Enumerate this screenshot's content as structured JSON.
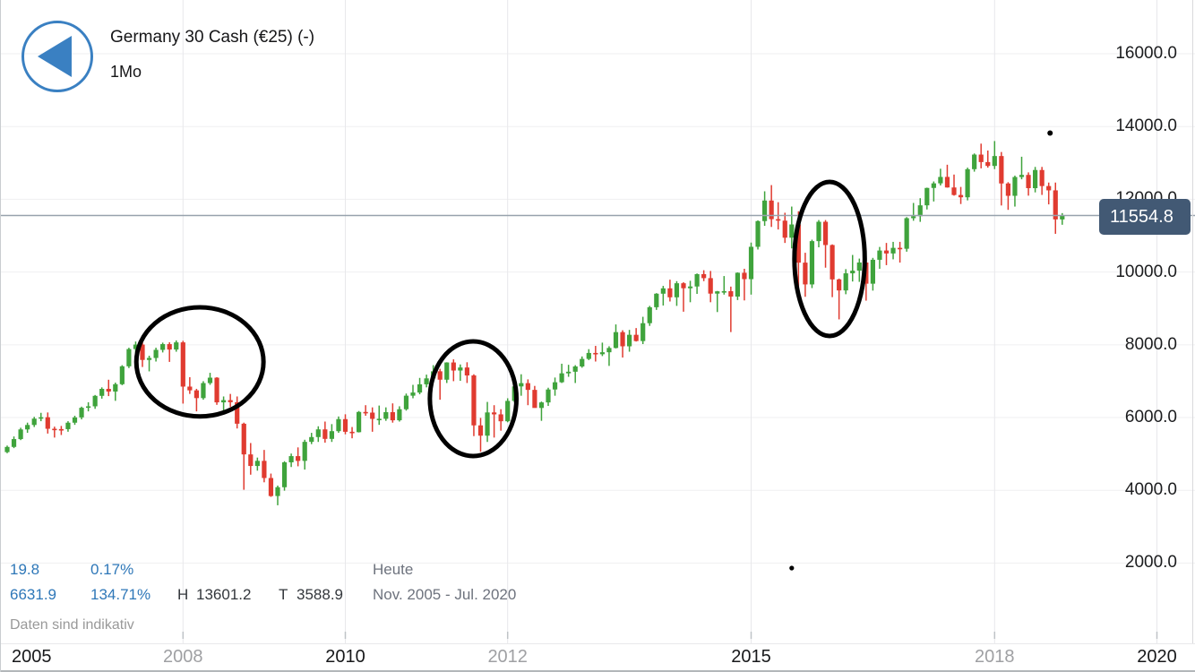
{
  "header": {
    "title": "Germany 30 Cash (€25) (-)",
    "timeframe": "1Mo",
    "back_icon": "left-arrow-circle"
  },
  "price_label": {
    "value": "11554.8"
  },
  "stats": {
    "change": "19.8",
    "change_pct": "0.17%",
    "period_change": "6631.9",
    "period_change_pct": "134.71%",
    "high_label": "H",
    "high_value": "13601.2",
    "low_label": "T",
    "low_value": "3588.9",
    "period_label": "Heute",
    "period_range": "Nov. 2005 - Jul. 2020",
    "disclaimer": "Daten sind indikativ"
  },
  "colors": {
    "up": "#3fa33c",
    "down": "#e03b30",
    "annotation": "#000000",
    "price_line": "#97a2ad",
    "badge_bg": "#425974",
    "badge_text": "#ffffff",
    "accent_blue": "#3a80c2",
    "stat_blue": "#2e77b8",
    "grid_h": "#efeff1",
    "grid_v": "#e8e8eb",
    "tick": "#bfc3c7",
    "axis_text": "#1b1c1e",
    "muted_axis_text": "#9fa0a3"
  },
  "chart_data": {
    "type": "candlestick",
    "title": "Germany 30 Cash (€25) (-)",
    "interval": "1Mo",
    "start_month": "2005-11",
    "visible_range": "Nov. 2005 - Jul. 2020",
    "current_price": 11554.8,
    "range_high": 13601.2,
    "range_low": 3588.9,
    "y_axis": {
      "ticks": [
        16000,
        14000,
        12000,
        10000,
        8000,
        6000,
        4000,
        2000
      ],
      "grid": true
    },
    "x_axis": {
      "labels": [
        {
          "year": "2005",
          "muted": false
        },
        {
          "year": "2008",
          "muted": true
        },
        {
          "year": "2010",
          "muted": false
        },
        {
          "year": "2012",
          "muted": true
        },
        {
          "year": "2015",
          "muted": false
        },
        {
          "year": "2018",
          "muted": true
        },
        {
          "year": "2020",
          "muted": false
        }
      ]
    },
    "candles": [
      [
        5050,
        5230,
        5020,
        5193
      ],
      [
        5193,
        5480,
        5160,
        5408
      ],
      [
        5408,
        5720,
        5380,
        5674
      ],
      [
        5674,
        5860,
        5580,
        5796
      ],
      [
        5796,
        6020,
        5740,
        5970
      ],
      [
        5970,
        6130,
        5900,
        6009
      ],
      [
        6009,
        6140,
        5560,
        5692
      ],
      [
        5692,
        5750,
        5450,
        5683
      ],
      [
        5683,
        5770,
        5520,
        5682
      ],
      [
        5682,
        5900,
        5610,
        5859
      ],
      [
        5859,
        6050,
        5800,
        6004
      ],
      [
        6004,
        6300,
        5950,
        6269
      ],
      [
        6269,
        6420,
        6170,
        6309
      ],
      [
        6309,
        6620,
        6240,
        6597
      ],
      [
        6597,
        6830,
        6520,
        6789
      ],
      [
        6789,
        7040,
        6590,
        6715
      ],
      [
        6715,
        6960,
        6460,
        6917
      ],
      [
        6917,
        7440,
        6890,
        7409
      ],
      [
        7409,
        7920,
        7360,
        7883
      ],
      [
        7883,
        8090,
        7690,
        8007
      ],
      [
        8007,
        8130,
        7390,
        7584
      ],
      [
        7584,
        7700,
        7270,
        7638
      ],
      [
        7638,
        7920,
        7540,
        7861
      ],
      [
        7861,
        8060,
        7790,
        8019
      ],
      [
        8019,
        8070,
        7530,
        7870
      ],
      [
        7870,
        8120,
        7810,
        8067
      ],
      [
        8067,
        8110,
        6384,
        6851
      ],
      [
        6851,
        7110,
        6650,
        6748
      ],
      [
        6748,
        6790,
        6170,
        6535
      ],
      [
        6535,
        7000,
        6490,
        6948
      ],
      [
        6948,
        7230,
        6900,
        7096
      ],
      [
        7096,
        7110,
        6350,
        6418
      ],
      [
        6418,
        6580,
        6190,
        6479
      ],
      [
        6479,
        6650,
        6290,
        6422
      ],
      [
        6422,
        6580,
        5700,
        5831
      ],
      [
        5831,
        5860,
        4015,
        4987
      ],
      [
        4987,
        5300,
        4430,
        4669
      ],
      [
        4669,
        4900,
        4540,
        4810
      ],
      [
        4810,
        5110,
        4220,
        4338
      ],
      [
        4338,
        4460,
        3820,
        3843
      ],
      [
        3843,
        4130,
        3588.9,
        4085
      ],
      [
        4085,
        4800,
        3990,
        4769
      ],
      [
        4769,
        5010,
        4640,
        4940
      ],
      [
        4940,
        5180,
        4660,
        4809
      ],
      [
        4809,
        5390,
        4570,
        5332
      ],
      [
        5332,
        5580,
        5270,
        5464
      ],
      [
        5464,
        5760,
        5330,
        5675
      ],
      [
        5675,
        5890,
        5310,
        5414
      ],
      [
        5414,
        5820,
        5330,
        5626
      ],
      [
        5626,
        6030,
        5580,
        5957
      ],
      [
        5957,
        6090,
        5540,
        5609
      ],
      [
        5609,
        5740,
        5430,
        5598
      ],
      [
        5598,
        6180,
        5590,
        6154
      ],
      [
        6154,
        6340,
        6050,
        6136
      ],
      [
        6136,
        6280,
        5610,
        5964
      ],
      [
        5964,
        6330,
        5800,
        5966
      ],
      [
        5966,
        6280,
        5910,
        6148
      ],
      [
        6148,
        6390,
        5860,
        5925
      ],
      [
        5925,
        6310,
        5890,
        6229
      ],
      [
        6229,
        6660,
        6190,
        6601
      ],
      [
        6601,
        6900,
        6530,
        6688
      ],
      [
        6688,
        7090,
        6640,
        6914
      ],
      [
        6914,
        7180,
        6830,
        7077
      ],
      [
        7077,
        7440,
        7010,
        7272
      ],
      [
        7272,
        7340,
        6490,
        7041
      ],
      [
        7041,
        7520,
        6950,
        7514
      ],
      [
        7514,
        7600,
        7000,
        7293
      ],
      [
        7293,
        7460,
        7010,
        7376
      ],
      [
        7376,
        7520,
        6950,
        7158
      ],
      [
        7158,
        7190,
        5490,
        5785
      ],
      [
        5785,
        5990,
        5060,
        5502
      ],
      [
        5502,
        6430,
        5330,
        6141
      ],
      [
        6141,
        6340,
        5450,
        6088
      ],
      [
        6088,
        6230,
        5640,
        5898
      ],
      [
        5898,
        6530,
        5870,
        6458
      ],
      [
        6458,
        6970,
        6420,
        6856
      ],
      [
        6856,
        7190,
        6600,
        6946
      ],
      [
        6946,
        7050,
        6340,
        6761
      ],
      [
        6761,
        6870,
        6270,
        6264
      ],
      [
        6264,
        6440,
        5910,
        6416
      ],
      [
        6416,
        6820,
        6320,
        6772
      ],
      [
        6772,
        7100,
        6600,
        6970
      ],
      [
        6970,
        7480,
        6950,
        7216
      ],
      [
        7216,
        7450,
        7120,
        7260
      ],
      [
        7260,
        7440,
        6950,
        7405
      ],
      [
        7405,
        7680,
        7370,
        7612
      ],
      [
        7612,
        7880,
        7580,
        7776
      ],
      [
        7776,
        7970,
        7540,
        7741
      ],
      [
        7741,
        8060,
        7690,
        7795
      ],
      [
        7795,
        7960,
        7420,
        7913
      ],
      [
        7913,
        8560,
        7900,
        8348
      ],
      [
        8348,
        8400,
        7650,
        7959
      ],
      [
        7959,
        8410,
        7810,
        8275
      ],
      [
        8275,
        8460,
        8090,
        8103
      ],
      [
        8103,
        8770,
        8020,
        8594
      ],
      [
        8594,
        9070,
        8520,
        9033
      ],
      [
        9033,
        9420,
        8960,
        9405
      ],
      [
        9405,
        9620,
        9080,
        9552
      ],
      [
        9552,
        9790,
        9190,
        9306
      ],
      [
        9306,
        9750,
        9070,
        9692
      ],
      [
        9692,
        9720,
        8910,
        9555
      ],
      [
        9555,
        9760,
        9170,
        9603
      ],
      [
        9603,
        9960,
        9400,
        9943
      ],
      [
        9943,
        10050,
        9750,
        9833
      ],
      [
        9833,
        10030,
        9170,
        9407
      ],
      [
        9407,
        9480,
        8900,
        9470
      ],
      [
        9470,
        9890,
        9380,
        9474
      ],
      [
        9474,
        9600,
        8350,
        9326
      ],
      [
        9326,
        9990,
        9230,
        9980
      ],
      [
        9980,
        10090,
        9220,
        9805
      ],
      [
        9805,
        10810,
        9380,
        10694
      ],
      [
        10694,
        11420,
        10620,
        11401
      ],
      [
        11401,
        12220,
        11270,
        11966
      ],
      [
        11966,
        12390,
        11240,
        11454
      ],
      [
        11454,
        11920,
        11170,
        11413
      ],
      [
        11413,
        11630,
        10800,
        10944
      ],
      [
        10944,
        11800,
        10650,
        11308
      ],
      [
        11308,
        11670,
        9340,
        10259
      ],
      [
        10259,
        10530,
        9320,
        9660
      ],
      [
        9660,
        10890,
        9560,
        10850
      ],
      [
        10850,
        11430,
        10680,
        11382
      ],
      [
        11382,
        11430,
        10120,
        10743
      ],
      [
        10743,
        10760,
        9310,
        9798
      ],
      [
        9798,
        9820,
        8699,
        9495
      ],
      [
        9495,
        10080,
        9390,
        9965
      ],
      [
        9965,
        10470,
        9740,
        10038
      ],
      [
        10038,
        10370,
        9730,
        10262
      ],
      [
        10262,
        10340,
        9214,
        9680
      ],
      [
        9680,
        10390,
        9490,
        10337
      ],
      [
        10337,
        10690,
        10090,
        10592
      ],
      [
        10592,
        10800,
        10190,
        10511
      ],
      [
        10511,
        10830,
        10350,
        10665
      ],
      [
        10665,
        10830,
        10260,
        10640
      ],
      [
        10640,
        11510,
        10560,
        11481
      ],
      [
        11481,
        11900,
        11410,
        11535
      ],
      [
        11535,
        12030,
        11380,
        11834
      ],
      [
        11834,
        12320,
        11720,
        12312
      ],
      [
        12312,
        12490,
        11940,
        12438
      ],
      [
        12438,
        12840,
        12380,
        12615
      ],
      [
        12615,
        12950,
        12320,
        12325
      ],
      [
        12325,
        12680,
        12100,
        12118
      ],
      [
        12118,
        12340,
        11870,
        12055
      ],
      [
        12055,
        12870,
        11970,
        12828
      ],
      [
        12828,
        13260,
        12760,
        13229
      ],
      [
        13229,
        13530,
        12850,
        13023
      ],
      [
        13023,
        13340,
        12870,
        12917
      ],
      [
        12917,
        13601.2,
        12830,
        13189
      ],
      [
        13189,
        13300,
        11830,
        12435
      ],
      [
        12435,
        12470,
        11710,
        12096
      ],
      [
        12096,
        12650,
        11800,
        12612
      ],
      [
        12612,
        13170,
        12550,
        12670
      ],
      [
        12670,
        12740,
        12100,
        12306
      ],
      [
        12306,
        12890,
        12190,
        12805
      ],
      [
        12805,
        12890,
        12120,
        12364
      ],
      [
        12364,
        12460,
        11860,
        12246
      ],
      [
        12246,
        12460,
        11051,
        11447
      ],
      [
        11447,
        11620,
        11300,
        11554.8
      ]
    ],
    "annotations": {
      "ellipses": [
        {
          "cx_month": 28.5,
          "cy_price": 7530,
          "rx_months": 9.4,
          "ry_points": 1500
        },
        {
          "cx_month": 68.9,
          "cy_price": 6518,
          "rx_months": 6.4,
          "ry_points": 1576
        },
        {
          "cx_month": 121.6,
          "cy_price": 10360,
          "rx_months": 5.2,
          "ry_points": 2118
        }
      ],
      "dots": [
        {
          "cx_month": 154.2,
          "cy_price": 13821,
          "r": 3
        },
        {
          "cx_month": 116.0,
          "cy_price": 1863,
          "r": 2.6
        }
      ]
    }
  }
}
